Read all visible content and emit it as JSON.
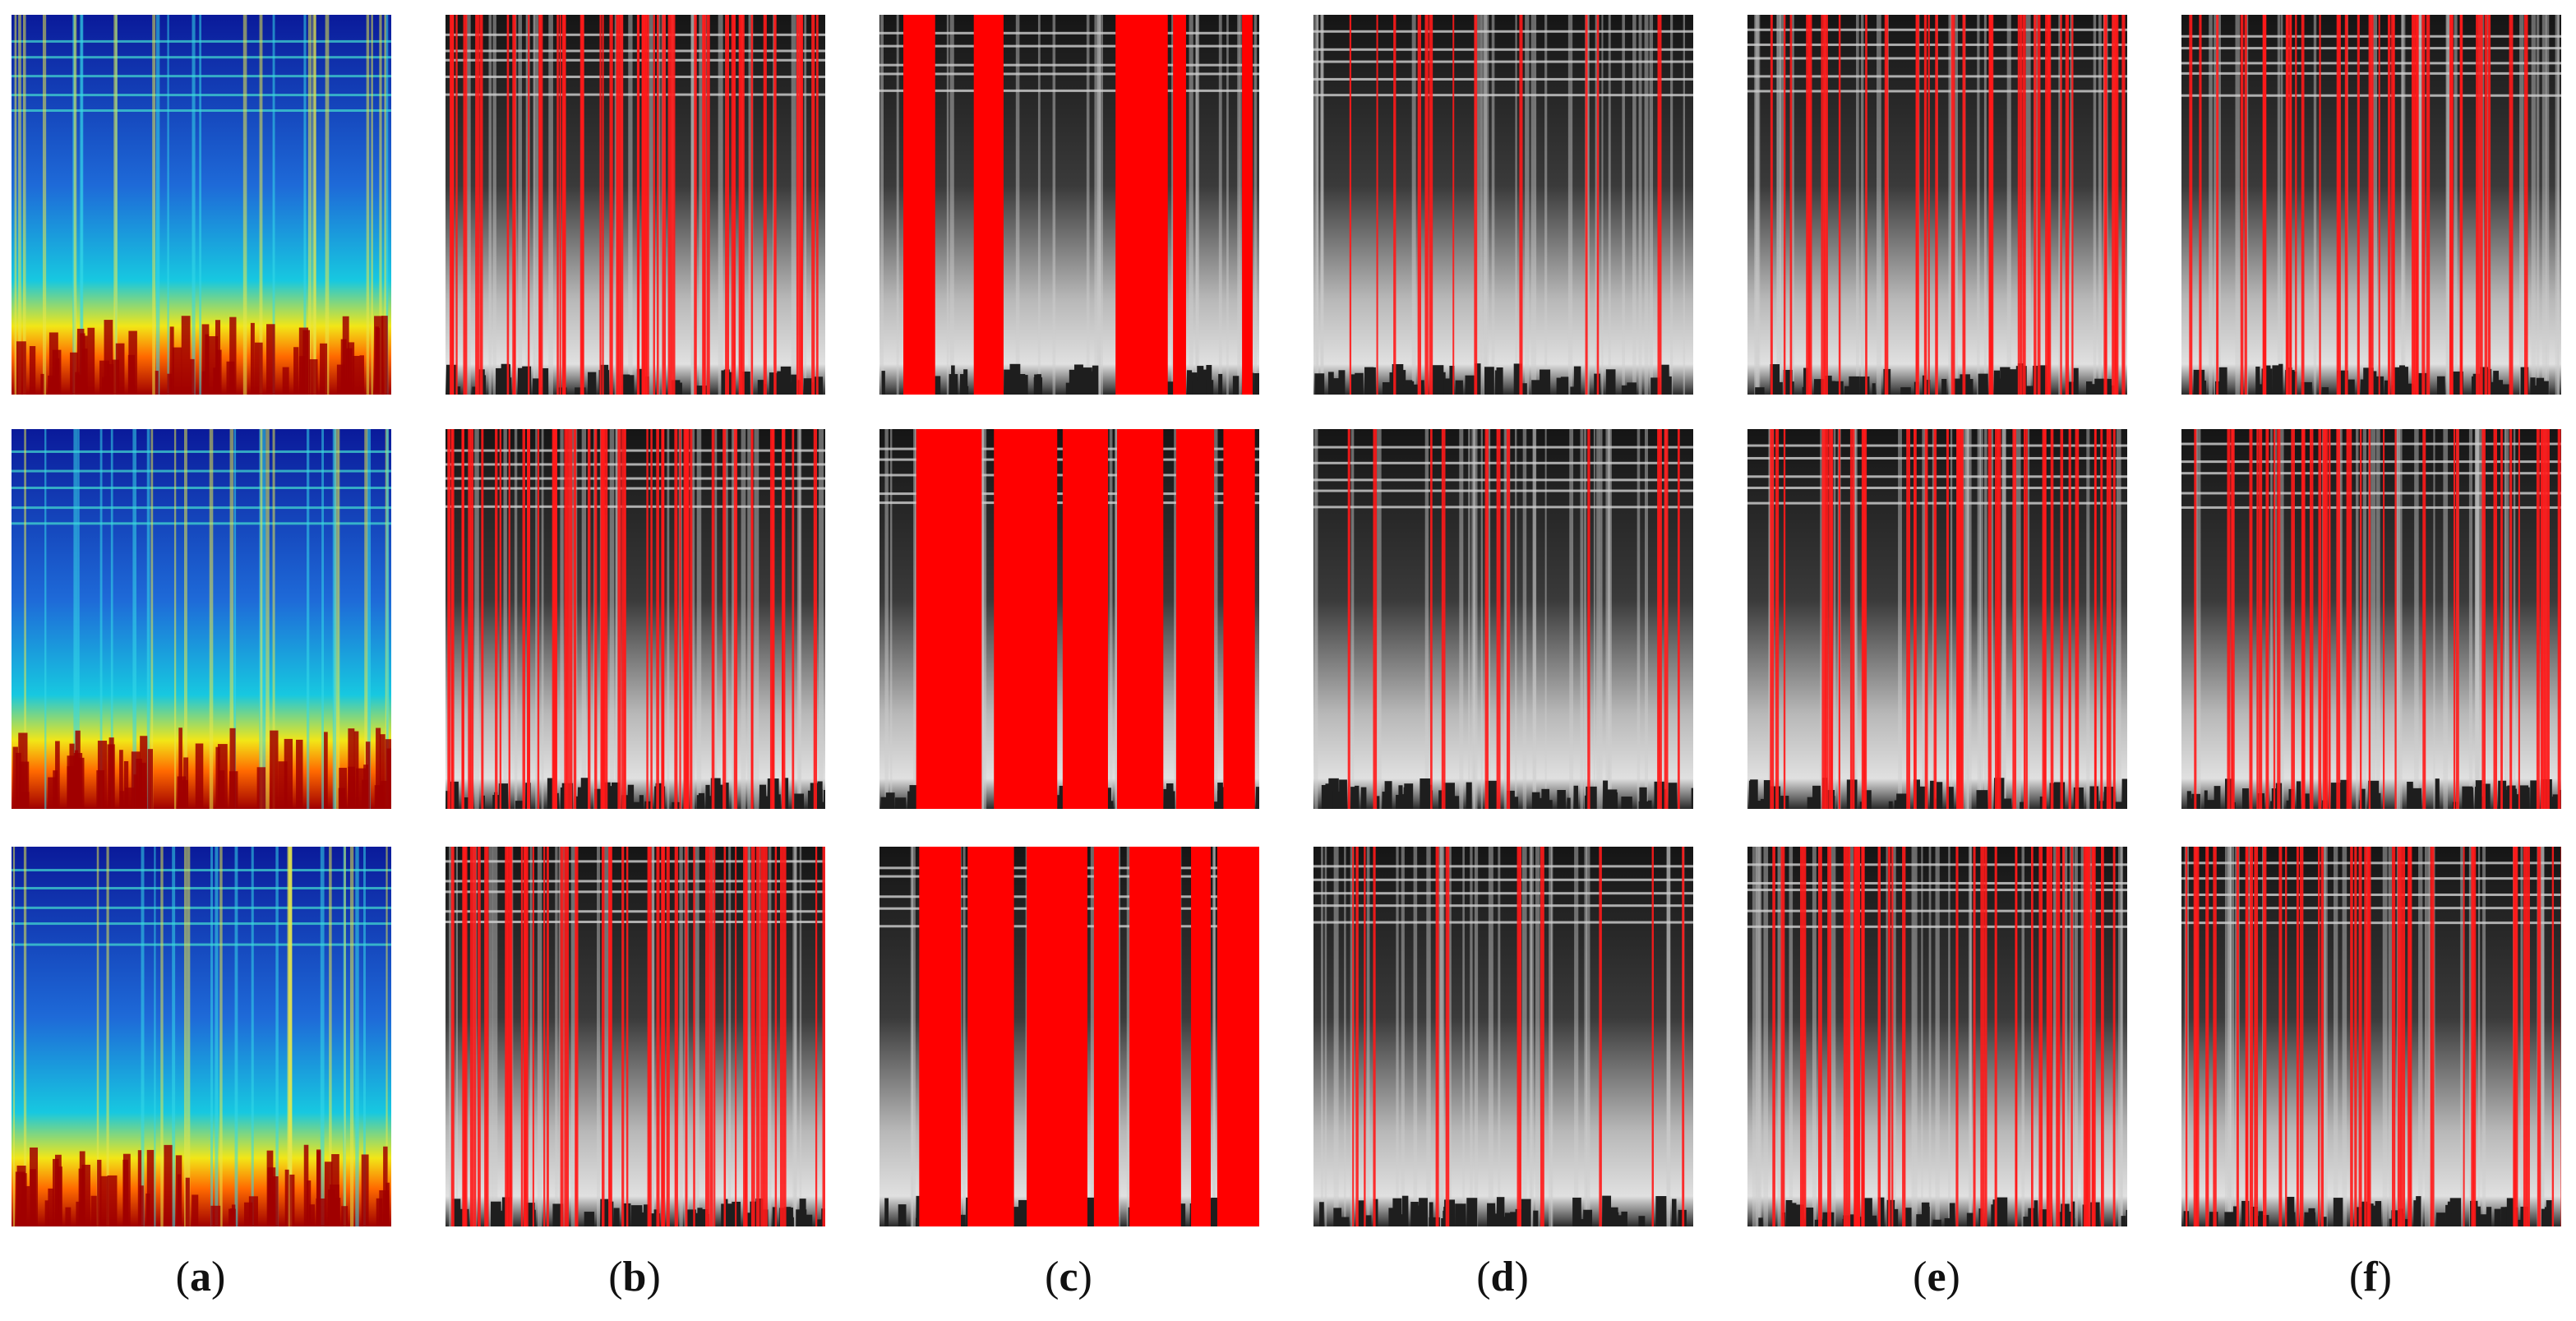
{
  "figure": {
    "columns": [
      {
        "id": "a",
        "caption_open": "(",
        "caption_letter": "a",
        "caption_close": ")",
        "style": "jet",
        "overlay": "none"
      },
      {
        "id": "b",
        "caption_open": "(",
        "caption_letter": "b",
        "caption_close": ")",
        "style": "gray",
        "overlay": "dense-red-lines"
      },
      {
        "id": "c",
        "caption_open": "(",
        "caption_letter": "c",
        "caption_close": ")",
        "style": "gray",
        "overlay": "red-bands"
      },
      {
        "id": "d",
        "caption_open": "(",
        "caption_letter": "d",
        "caption_close": ")",
        "style": "gray",
        "overlay": "sparse-red-lines"
      },
      {
        "id": "e",
        "caption_open": "(",
        "caption_letter": "e",
        "caption_close": ")",
        "style": "gray",
        "overlay": "medium-red-lines"
      },
      {
        "id": "f",
        "caption_open": "(",
        "caption_letter": "f",
        "caption_close": ")",
        "style": "gray",
        "overlay": "medium-red-lines"
      }
    ],
    "rows": 3,
    "colors": {
      "overlay_red": "#ff1a1a",
      "band_red": "#ff0000",
      "gray_dark": "#1e1e1e",
      "gray_light": "#e0e0e0",
      "jet_low": "#0a1a9a",
      "jet_mid": "#17c8e0",
      "jet_high": "#a00000"
    }
  }
}
